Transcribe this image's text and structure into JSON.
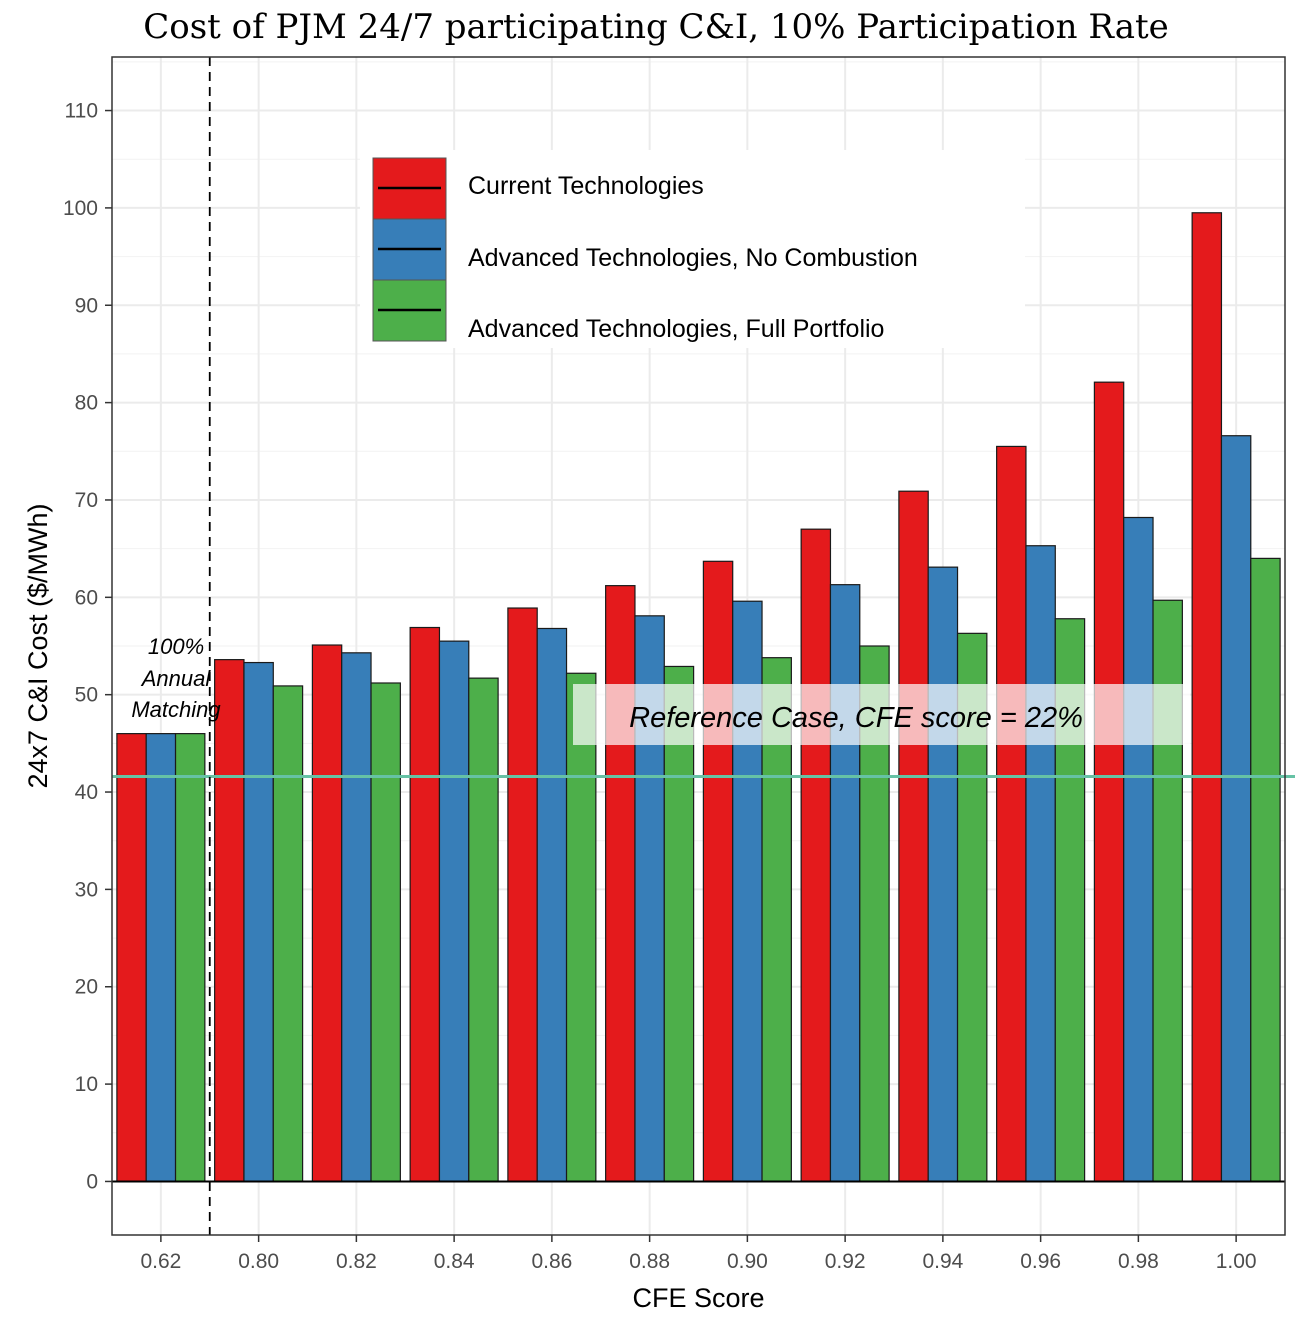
{
  "chart_data": {
    "type": "bar",
    "title": "Cost of PJM 24/7 participating C&I, 10% Participation Rate",
    "xlabel": "CFE Score",
    "ylabel": "24x7 C&I Cost ($/MWh)",
    "categories": [
      "0.62",
      "0.80",
      "0.82",
      "0.84",
      "0.86",
      "0.88",
      "0.90",
      "0.92",
      "0.94",
      "0.96",
      "0.98",
      "1.00"
    ],
    "series": [
      {
        "name": "Current Technologies",
        "color": "#e41a1c",
        "values": [
          46.0,
          53.6,
          55.1,
          56.9,
          58.9,
          61.2,
          63.7,
          67.0,
          70.9,
          75.5,
          82.1,
          99.5
        ]
      },
      {
        "name": "Advanced Technologies, No Combustion",
        "color": "#377eb8",
        "values": [
          46.0,
          53.3,
          54.3,
          55.5,
          56.8,
          58.1,
          59.6,
          61.3,
          63.1,
          65.3,
          68.2,
          76.6
        ]
      },
      {
        "name": "Advanced Technologies, Full Portfolio",
        "color": "#4daf4a",
        "values": [
          46.0,
          50.9,
          51.2,
          51.7,
          52.2,
          52.9,
          53.8,
          55.0,
          56.3,
          57.8,
          59.7,
          64.0
        ]
      }
    ],
    "ylim": [
      -5.5,
      115.5
    ],
    "yticks": [
      0,
      10,
      20,
      30,
      40,
      50,
      60,
      70,
      80,
      90,
      100,
      110
    ],
    "grid": true,
    "legend_position": "top-center",
    "reference_line": {
      "value": 41.6,
      "label": "Reference Case, CFE score = 22%",
      "color": "#66c2a5"
    },
    "annual_matching_label": [
      "100%",
      "Annual",
      "Matching"
    ],
    "divider_after_category": "0.62"
  }
}
